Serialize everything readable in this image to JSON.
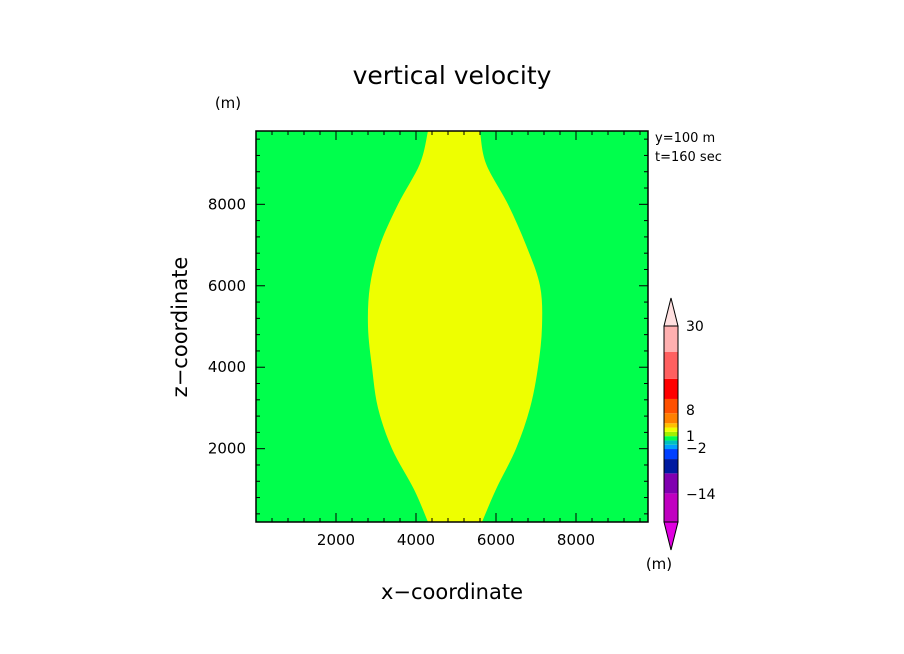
{
  "chart_data": {
    "type": "heatmap",
    "title": "vertical velocity",
    "xlabel": "x−coordinate",
    "ylabel": "z−coordinate",
    "z_unit": "(m)",
    "colorbar_unit": "(m)",
    "info": [
      "y=100  m",
      "t=160  sec"
    ],
    "xlim": [
      0,
      9800
    ],
    "ylim": [
      200,
      9800
    ],
    "x_ticks": [
      2000,
      4000,
      6000,
      8000
    ],
    "y_ticks": [
      2000,
      4000,
      6000,
      8000
    ],
    "x_tick_labels": [
      "2000",
      "4000",
      "6000",
      "8000"
    ],
    "y_tick_labels": [
      "2000",
      "4000",
      "6000",
      "8000"
    ],
    "background_value_color": "#00ff4c",
    "region": {
      "color": "#eeff00",
      "boundary": [
        {
          "z": 200,
          "x_left": 4300,
          "x_right": 5650
        },
        {
          "z": 1000,
          "x_left": 3950,
          "x_right": 6000
        },
        {
          "z": 2000,
          "x_left": 3400,
          "x_right": 6500
        },
        {
          "z": 3000,
          "x_left": 3050,
          "x_right": 6850
        },
        {
          "z": 4000,
          "x_left": 2900,
          "x_right": 7050
        },
        {
          "z": 5000,
          "x_left": 2800,
          "x_right": 7150
        },
        {
          "z": 6000,
          "x_left": 2850,
          "x_right": 7100
        },
        {
          "z": 7000,
          "x_left": 3100,
          "x_right": 6750
        },
        {
          "z": 8000,
          "x_left": 3550,
          "x_right": 6300
        },
        {
          "z": 9000,
          "x_left": 4100,
          "x_right": 5750
        },
        {
          "z": 9800,
          "x_left": 4300,
          "x_right": 5600
        }
      ]
    },
    "colorbar": {
      "labels": [
        {
          "text": "30",
          "level": 30
        },
        {
          "text": "8",
          "level": 8
        },
        {
          "text": "1",
          "level": 1
        },
        {
          "text": "−2",
          "level": -2
        },
        {
          "text": "−14",
          "level": -14
        }
      ],
      "segments": [
        {
          "color": "#c000c0",
          "weight": 2
        },
        {
          "color": "#8000b0",
          "weight": 1.4
        },
        {
          "color": "#001aa0",
          "weight": 1
        },
        {
          "color": "#0040ff",
          "weight": 0.7
        },
        {
          "color": "#00a0ff",
          "weight": 0.3
        },
        {
          "color": "#00c0c0",
          "weight": 0.3
        },
        {
          "color": "#00ff4c",
          "weight": 0.3
        },
        {
          "color": "#a0f000",
          "weight": 0.3
        },
        {
          "color": "#eeff00",
          "weight": 0.3
        },
        {
          "color": "#ffc000",
          "weight": 0.3
        },
        {
          "color": "#ff8000",
          "weight": 0.7
        },
        {
          "color": "#ff5000",
          "weight": 1
        },
        {
          "color": "#ff0000",
          "weight": 1.4
        },
        {
          "color": "#ff6060",
          "weight": 1.9
        },
        {
          "color": "#ffb0b0",
          "weight": 1.8
        }
      ],
      "lower_arrow_color": "#e000e0",
      "upper_arrow_color": "#ffe0e0"
    }
  }
}
